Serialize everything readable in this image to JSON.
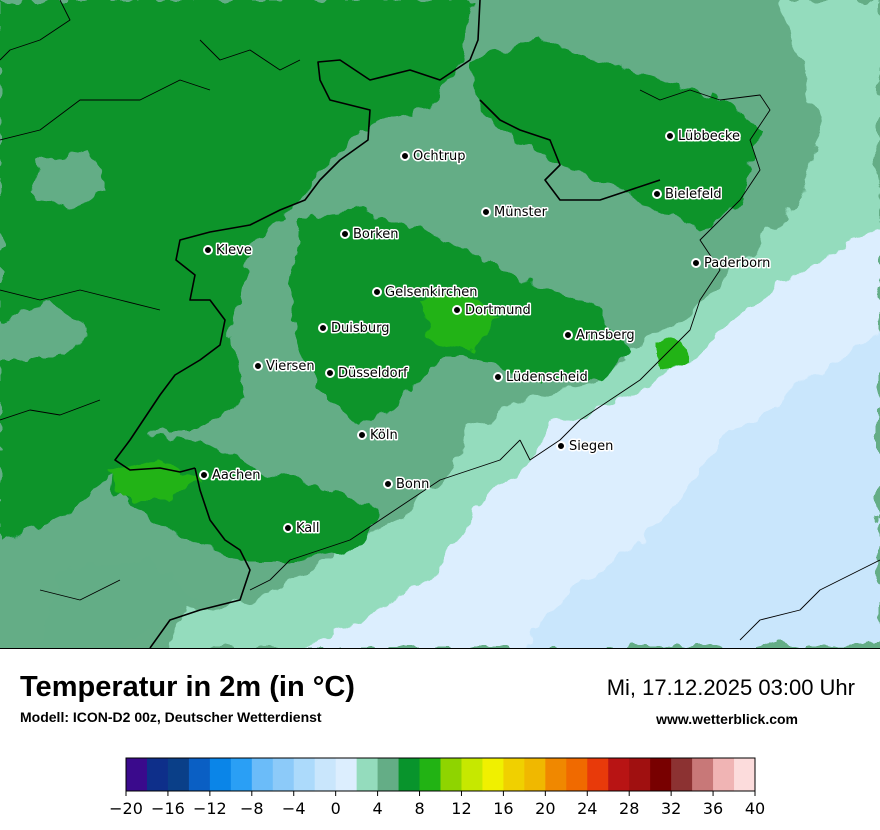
{
  "title": "Temperatur in 2m (in °C)",
  "subtitle": "Modell: ICON-D2 00z, Deutscher Wetterdienst",
  "datetime": "Mi, 17.12.2025 03:00 Uhr",
  "website": "www.wetterblick.com",
  "cities": [
    {
      "name": "Lübbecke"
    },
    {
      "name": "Ochtrup"
    },
    {
      "name": "Bielefeld"
    },
    {
      "name": "Münster"
    },
    {
      "name": "Kleve"
    },
    {
      "name": "Borken"
    },
    {
      "name": "Paderborn"
    },
    {
      "name": "Gelsenkirchen"
    },
    {
      "name": "Dortmund"
    },
    {
      "name": "Duisburg"
    },
    {
      "name": "Arnsberg"
    },
    {
      "name": "Viersen"
    },
    {
      "name": "Düsseldorf"
    },
    {
      "name": "Lüdenscheid"
    },
    {
      "name": "Köln"
    },
    {
      "name": "Siegen"
    },
    {
      "name": "Aachen"
    },
    {
      "name": "Bonn"
    },
    {
      "name": "Kall"
    }
  ],
  "legend": {
    "colors": [
      "#3a0a8c",
      "#0e2f8a",
      "#0a3f88",
      "#0a5fc4",
      "#0a85e8",
      "#2a9ff5",
      "#6bbcf9",
      "#8ccaf9",
      "#acdafb",
      "#c9e6fc",
      "#dceefe",
      "#94dcbd",
      "#64ad86",
      "#08942c",
      "#22b314",
      "#8fd400",
      "#c6e800",
      "#f0f000",
      "#f0d000",
      "#f0b800",
      "#f08800",
      "#f06a00",
      "#e83a0a",
      "#b81414",
      "#a01010",
      "#780000",
      "#8c3232",
      "#c87878",
      "#f0b4b4",
      "#fcdcdc"
    ],
    "ticks": [
      "−20",
      "−16",
      "−12",
      "−8",
      "−4",
      "0",
      "4",
      "8",
      "12",
      "16",
      "20",
      "24",
      "28",
      "32",
      "36",
      "40"
    ]
  }
}
